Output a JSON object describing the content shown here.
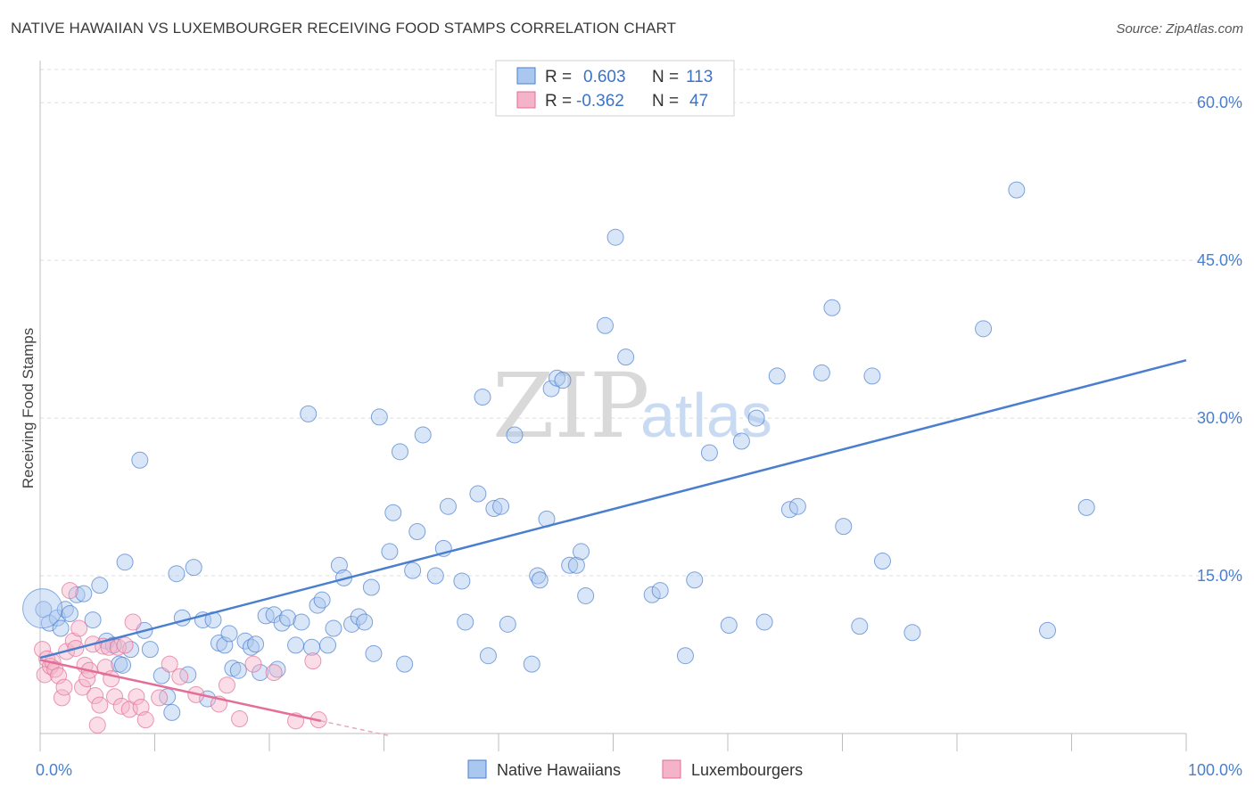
{
  "title": "NATIVE HAWAIIAN VS LUXEMBOURGER RECEIVING FOOD STAMPS CORRELATION CHART",
  "source": "Source: ZipAtlas.com",
  "watermark": {
    "zip": "ZIP",
    "atlas": "atlas"
  },
  "chart_data": {
    "type": "scatter",
    "ylabel": "Receiving Food Stamps",
    "xlim": [
      0,
      100
    ],
    "ylim": [
      0,
      64
    ],
    "x_tick_labels": [
      {
        "value": 0,
        "label": "0.0%"
      },
      {
        "value": 100,
        "label": "100.0%"
      }
    ],
    "y_ticks": [
      {
        "value": 15,
        "label": "15.0%"
      },
      {
        "value": 30,
        "label": "30.0%"
      },
      {
        "value": 45,
        "label": "45.0%"
      },
      {
        "value": 60,
        "label": "60.0%"
      }
    ],
    "legend": {
      "r_label": "R =",
      "n_label": "N =",
      "entries": [
        {
          "r": "0.603",
          "n": "113"
        },
        {
          "r": "-0.362",
          "n": "47"
        }
      ]
    },
    "series": [
      {
        "name": "Native Hawaiians",
        "color": "#4a7fcf",
        "fill": "#aac8ef",
        "trend": {
          "x0": 0,
          "y0": 7.2,
          "x1": 100,
          "y1": 35.5
        },
        "points": [
          [
            0.3,
            11.8
          ],
          [
            0.8,
            10.5
          ],
          [
            1.5,
            11.0
          ],
          [
            1.8,
            10.0
          ],
          [
            2.2,
            11.8
          ],
          [
            2.6,
            11.4
          ],
          [
            3.2,
            13.2
          ],
          [
            3.8,
            13.3
          ],
          [
            4.6,
            10.8
          ],
          [
            5.2,
            14.1
          ],
          [
            5.8,
            8.8
          ],
          [
            6.4,
            8.4
          ],
          [
            6.9,
            6.6
          ],
          [
            7.2,
            6.5
          ],
          [
            7.4,
            16.3
          ],
          [
            7.9,
            8.0
          ],
          [
            8.7,
            26.0
          ],
          [
            9.1,
            9.8
          ],
          [
            9.6,
            8.0
          ],
          [
            10.6,
            5.5
          ],
          [
            11.1,
            3.5
          ],
          [
            11.5,
            2.0
          ],
          [
            11.9,
            15.2
          ],
          [
            12.4,
            11.0
          ],
          [
            12.9,
            5.6
          ],
          [
            13.4,
            15.8
          ],
          [
            14.2,
            10.8
          ],
          [
            14.6,
            3.3
          ],
          [
            15.1,
            10.8
          ],
          [
            15.6,
            8.6
          ],
          [
            16.1,
            8.4
          ],
          [
            16.5,
            9.5
          ],
          [
            16.8,
            6.2
          ],
          [
            17.3,
            6.0
          ],
          [
            17.9,
            8.8
          ],
          [
            18.4,
            8.2
          ],
          [
            18.8,
            8.5
          ],
          [
            19.2,
            5.8
          ],
          [
            19.7,
            11.2
          ],
          [
            20.4,
            11.3
          ],
          [
            20.7,
            6.1
          ],
          [
            21.1,
            10.5
          ],
          [
            21.6,
            11.0
          ],
          [
            22.3,
            8.4
          ],
          [
            22.8,
            10.6
          ],
          [
            23.4,
            30.4
          ],
          [
            23.7,
            8.2
          ],
          [
            24.2,
            12.2
          ],
          [
            24.6,
            12.7
          ],
          [
            25.1,
            8.4
          ],
          [
            25.6,
            10.0
          ],
          [
            26.1,
            16.0
          ],
          [
            26.5,
            14.8
          ],
          [
            27.2,
            10.4
          ],
          [
            27.8,
            11.1
          ],
          [
            28.3,
            10.6
          ],
          [
            28.9,
            13.9
          ],
          [
            29.1,
            7.6
          ],
          [
            29.6,
            30.1
          ],
          [
            30.5,
            17.3
          ],
          [
            30.8,
            21.0
          ],
          [
            31.4,
            26.8
          ],
          [
            31.8,
            6.6
          ],
          [
            32.5,
            15.5
          ],
          [
            32.9,
            19.2
          ],
          [
            33.4,
            28.4
          ],
          [
            34.5,
            15.0
          ],
          [
            35.2,
            17.6
          ],
          [
            35.6,
            21.6
          ],
          [
            36.8,
            14.5
          ],
          [
            37.1,
            10.6
          ],
          [
            38.2,
            22.8
          ],
          [
            38.6,
            32.0
          ],
          [
            39.1,
            7.4
          ],
          [
            39.6,
            21.4
          ],
          [
            40.2,
            21.6
          ],
          [
            40.8,
            10.4
          ],
          [
            41.4,
            28.4
          ],
          [
            42.9,
            6.6
          ],
          [
            43.4,
            15.0
          ],
          [
            43.6,
            14.6
          ],
          [
            44.2,
            20.4
          ],
          [
            44.6,
            32.8
          ],
          [
            45.1,
            33.8
          ],
          [
            45.6,
            33.6
          ],
          [
            46.2,
            16.0
          ],
          [
            46.8,
            16.0
          ],
          [
            47.2,
            17.3
          ],
          [
            47.6,
            13.1
          ],
          [
            49.3,
            38.8
          ],
          [
            50.2,
            47.2
          ],
          [
            51.1,
            35.8
          ],
          [
            53.4,
            13.2
          ],
          [
            54.1,
            13.6
          ],
          [
            56.3,
            7.4
          ],
          [
            57.1,
            14.6
          ],
          [
            58.4,
            26.7
          ],
          [
            60.1,
            10.3
          ],
          [
            61.2,
            27.8
          ],
          [
            62.5,
            30.0
          ],
          [
            63.2,
            10.6
          ],
          [
            64.3,
            34.0
          ],
          [
            65.4,
            21.3
          ],
          [
            66.1,
            21.6
          ],
          [
            68.2,
            34.3
          ],
          [
            69.1,
            40.5
          ],
          [
            70.1,
            19.7
          ],
          [
            71.5,
            10.2
          ],
          [
            72.6,
            34.0
          ],
          [
            73.5,
            16.4
          ],
          [
            76.1,
            9.6
          ],
          [
            82.3,
            38.5
          ],
          [
            85.2,
            51.7
          ],
          [
            87.9,
            9.8
          ],
          [
            91.3,
            21.5
          ]
        ]
      },
      {
        "name": "Luxembourgers",
        "color": "#e36e97",
        "fill": "#f4b3c8",
        "trend": {
          "x0": 0,
          "y0": 7.0,
          "x1": 24.5,
          "y1": 1.2
        },
        "points": [
          [
            0.2,
            8.0
          ],
          [
            0.4,
            5.6
          ],
          [
            0.6,
            7.1
          ],
          [
            0.9,
            6.4
          ],
          [
            1.1,
            6.8
          ],
          [
            1.3,
            6.1
          ],
          [
            1.6,
            5.5
          ],
          [
            1.9,
            3.4
          ],
          [
            2.1,
            4.4
          ],
          [
            2.3,
            7.8
          ],
          [
            2.6,
            13.6
          ],
          [
            2.9,
            8.8
          ],
          [
            3.1,
            8.1
          ],
          [
            3.4,
            10.0
          ],
          [
            3.7,
            4.4
          ],
          [
            3.9,
            6.5
          ],
          [
            4.1,
            5.2
          ],
          [
            4.3,
            6.0
          ],
          [
            4.6,
            8.5
          ],
          [
            4.8,
            3.6
          ],
          [
            5.0,
            0.8
          ],
          [
            5.2,
            2.7
          ],
          [
            5.5,
            8.3
          ],
          [
            5.7,
            6.3
          ],
          [
            6.0,
            8.2
          ],
          [
            6.2,
            5.2
          ],
          [
            6.5,
            3.5
          ],
          [
            6.8,
            8.2
          ],
          [
            7.1,
            2.6
          ],
          [
            7.4,
            8.4
          ],
          [
            7.8,
            2.3
          ],
          [
            8.1,
            10.6
          ],
          [
            8.4,
            3.5
          ],
          [
            8.8,
            2.5
          ],
          [
            9.2,
            1.3
          ],
          [
            10.4,
            3.4
          ],
          [
            11.3,
            6.6
          ],
          [
            12.2,
            5.4
          ],
          [
            13.6,
            3.7
          ],
          [
            15.6,
            2.8
          ],
          [
            16.3,
            4.6
          ],
          [
            17.4,
            1.4
          ],
          [
            18.6,
            6.6
          ],
          [
            20.4,
            5.8
          ],
          [
            22.3,
            1.2
          ],
          [
            23.8,
            6.9
          ],
          [
            24.3,
            1.3
          ]
        ]
      }
    ],
    "bottom_legend": [
      "Native Hawaiians",
      "Luxembourgers"
    ]
  }
}
